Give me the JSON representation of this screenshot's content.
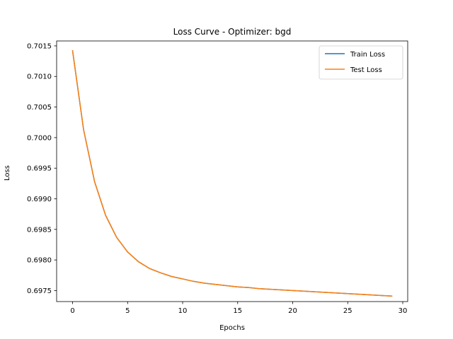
{
  "chart_data": {
    "type": "line",
    "title": "Loss Curve - Optimizer: bgd",
    "xlabel": "Epochs",
    "ylabel": "Loss",
    "xlim": [
      -1.45,
      30.45
    ],
    "ylim": [
      0.69732,
      0.70158
    ],
    "xticks": [
      0,
      5,
      10,
      15,
      20,
      25,
      30
    ],
    "yticks": [
      0.6975,
      0.698,
      0.6985,
      0.699,
      0.6995,
      0.7,
      0.7005,
      0.701,
      0.7015
    ],
    "ytick_labels": [
      "0.6975",
      "0.6980",
      "0.6985",
      "0.6990",
      "0.6995",
      "0.7000",
      "0.7005",
      "0.7010",
      "0.7015"
    ],
    "grid": false,
    "legend_position": "top-right",
    "x": [
      0,
      1,
      2,
      3,
      4,
      5,
      6,
      7,
      8,
      9,
      10,
      11,
      12,
      13,
      14,
      15,
      16,
      17,
      18,
      19,
      20,
      21,
      22,
      23,
      24,
      25,
      26,
      27,
      28,
      29
    ],
    "series": [
      {
        "name": "Train Loss",
        "color": "#1f77b4",
        "values": [
          0.70142,
          0.70013,
          0.69928,
          0.69873,
          0.69837,
          0.69813,
          0.69797,
          0.69786,
          0.69779,
          0.69773,
          0.69769,
          0.69765,
          0.69762,
          0.6976,
          0.69758,
          0.69756,
          0.69755,
          0.69753,
          0.69752,
          0.69751,
          0.6975,
          0.69749,
          0.69748,
          0.69747,
          0.69746,
          0.69745,
          0.69744,
          0.69743,
          0.69742,
          0.69741
        ]
      },
      {
        "name": "Test Loss",
        "color": "#ff7f0e",
        "values": [
          0.70142,
          0.70013,
          0.69928,
          0.69873,
          0.69837,
          0.69813,
          0.69797,
          0.69786,
          0.69779,
          0.69773,
          0.69769,
          0.69765,
          0.69762,
          0.6976,
          0.69758,
          0.69756,
          0.69755,
          0.69753,
          0.69752,
          0.69751,
          0.6975,
          0.69749,
          0.69748,
          0.69747,
          0.69746,
          0.69745,
          0.69744,
          0.69743,
          0.69742,
          0.69741
        ]
      }
    ]
  }
}
